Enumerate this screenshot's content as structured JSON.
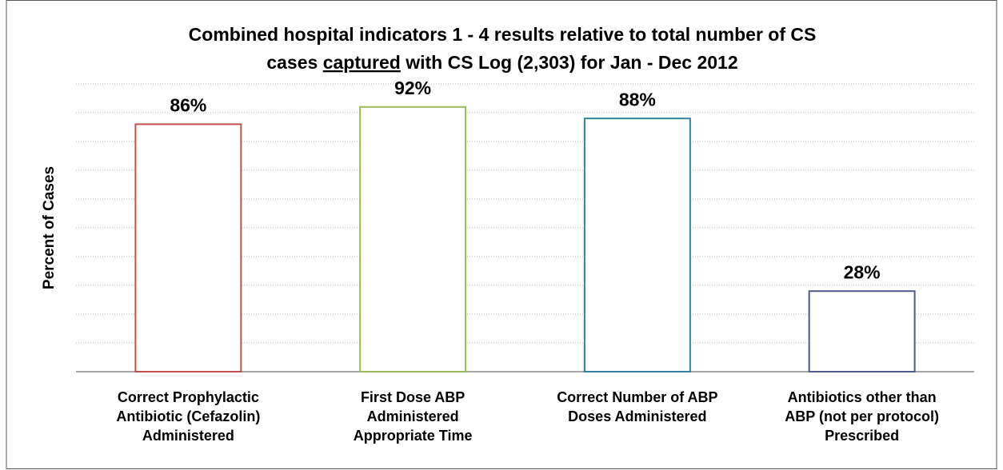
{
  "chart_data": {
    "type": "bar",
    "title": [
      "Combined hospital indicators 1 - 4 results relative to total number of CS",
      "cases captured with CS Log (2,303) for Jan - Dec 2012"
    ],
    "title_underlined": "captured",
    "ylabel": "Percent of Cases",
    "categories": [
      [
        "Correct Prophylactic",
        "Antibiotic (Cefazolin)",
        "Administered"
      ],
      [
        "First Dose ABP",
        "Administered",
        "Appropriate Time"
      ],
      [
        "Correct Number of ABP",
        "Doses Administered"
      ],
      [
        "Antibiotics other than",
        "ABP (not per protocol)",
        "Prescribed"
      ]
    ],
    "values": [
      86,
      92,
      88,
      28
    ],
    "value_labels": [
      "86%",
      "92%",
      "88%",
      "28%"
    ],
    "colors": [
      "#c0504d",
      "#9bbb59",
      "#31849b",
      "#4f5a8a"
    ],
    "ylim": [
      0,
      100
    ],
    "yticks": [
      0,
      10,
      20,
      30,
      40,
      50,
      60,
      70,
      80,
      90,
      100
    ],
    "show_ytick_labels": false,
    "grid": true
  }
}
